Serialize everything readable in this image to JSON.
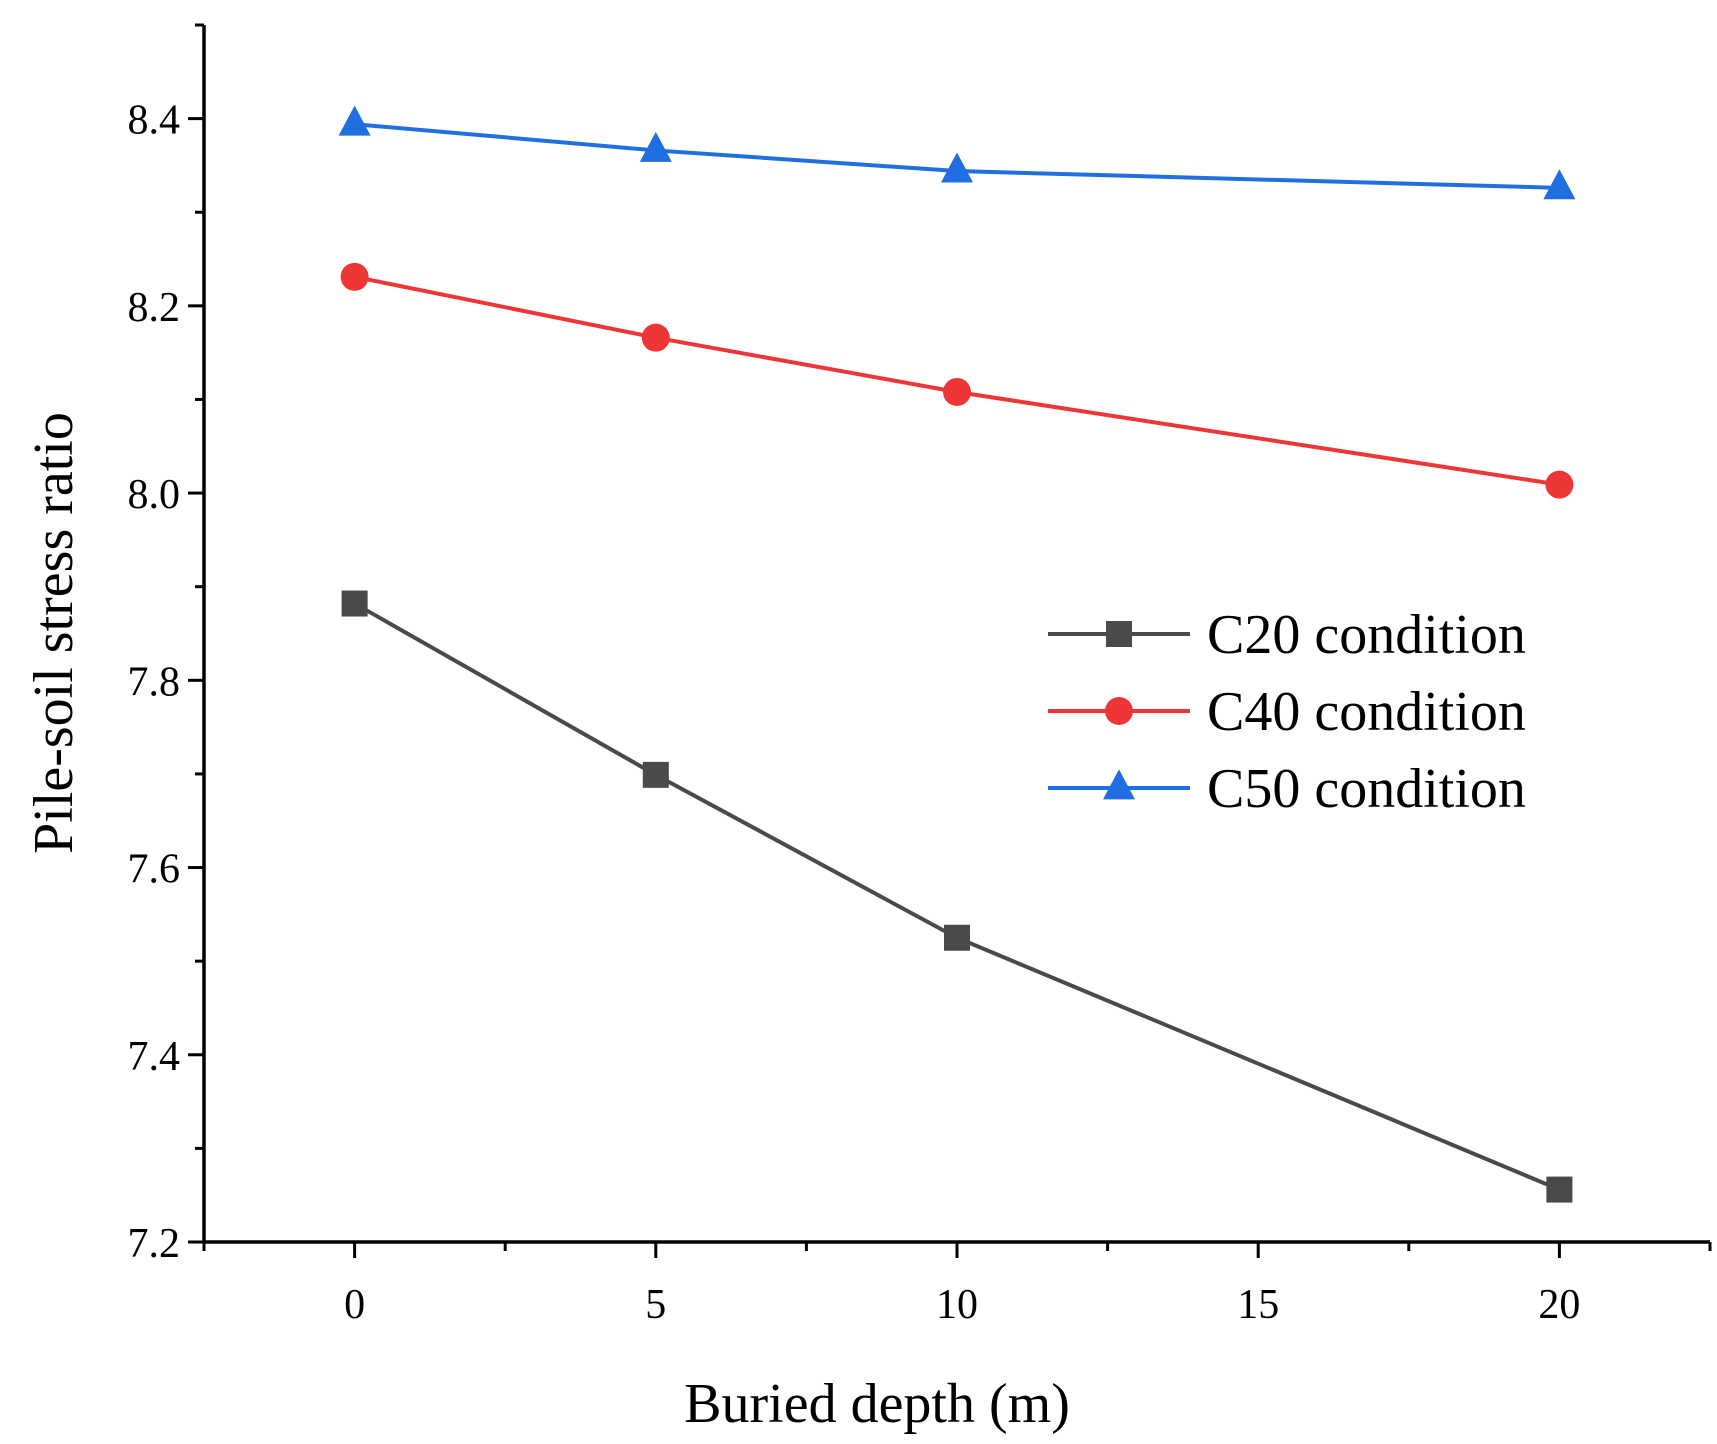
{
  "chart_data": {
    "type": "line",
    "title": "",
    "xlabel": "Buried depth (m)",
    "ylabel": "Pile-soil stress ratio",
    "x": [
      0,
      5,
      10,
      20
    ],
    "xlim": [
      -2.5,
      22.5
    ],
    "ylim": [
      7.2,
      8.5
    ],
    "x_ticks": [
      0,
      5,
      10,
      15,
      20
    ],
    "x_tick_labels": [
      "0",
      "5",
      "10",
      "15",
      "20"
    ],
    "y_ticks": [
      7.2,
      7.4,
      7.6,
      7.8,
      8.0,
      8.2,
      8.4
    ],
    "y_tick_labels": [
      "7.2",
      "7.4",
      "7.6",
      "7.8",
      "8.0",
      "8.2",
      "8.4"
    ],
    "grid": false,
    "legend_position": "right-middle",
    "series": [
      {
        "name": "C20 condition",
        "color": "#4a4a4a",
        "marker": "square",
        "values": [
          7.882,
          7.699,
          7.525,
          7.256
        ]
      },
      {
        "name": "C40 condition",
        "color": "#ee3636",
        "marker": "circle",
        "values": [
          8.231,
          8.166,
          8.108,
          8.009
        ]
      },
      {
        "name": "C50 condition",
        "color": "#1f6fe0",
        "marker": "triangle",
        "values": [
          8.394,
          8.366,
          8.344,
          8.326
        ]
      }
    ]
  }
}
